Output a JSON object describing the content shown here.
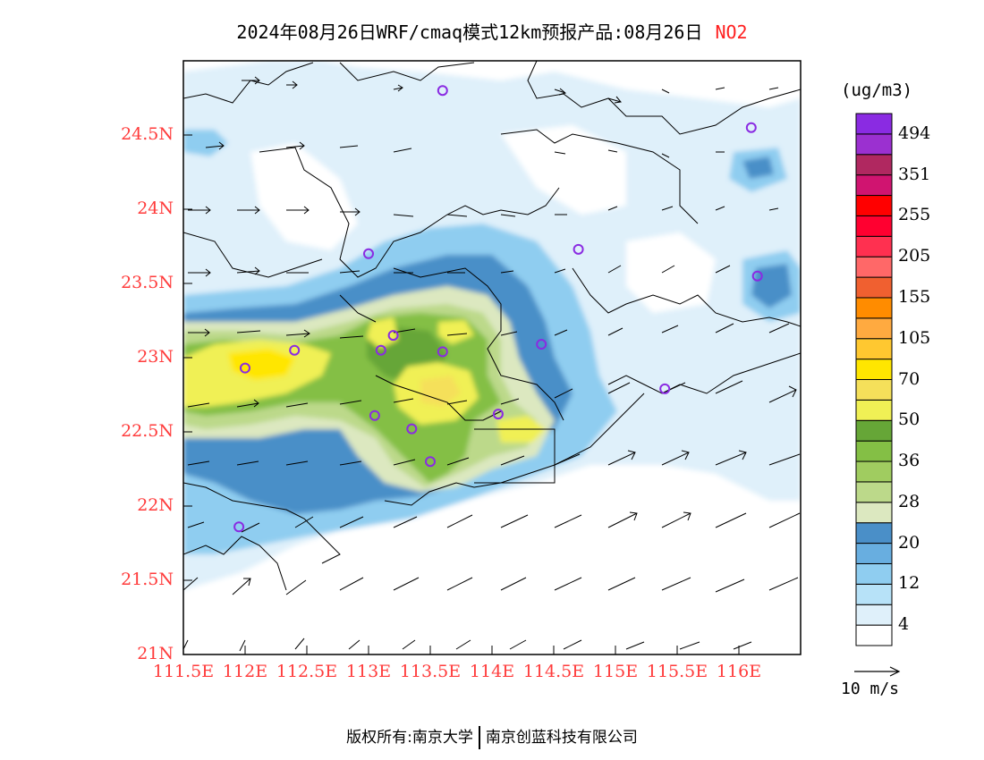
{
  "title": {
    "text": "2024年08月26日WRF/cmaq模式12km预报产品:08月26日",
    "species": "NO2"
  },
  "colors": {
    "axis_label": "#ff3b3b",
    "species": "#ff2020",
    "boundary": "#000000",
    "station_marker": "#8a2be2"
  },
  "map": {
    "lon_range": [
      111.5,
      116.5
    ],
    "lat_range": [
      21.0,
      25.0
    ],
    "lat_ticks": [
      {
        "value": 24.5,
        "label": "24.5N"
      },
      {
        "value": 24.0,
        "label": "24N"
      },
      {
        "value": 23.5,
        "label": "23.5N"
      },
      {
        "value": 23.0,
        "label": "23N"
      },
      {
        "value": 22.5,
        "label": "22.5N"
      },
      {
        "value": 22.0,
        "label": "22N"
      },
      {
        "value": 21.5,
        "label": "21.5N"
      },
      {
        "value": 21.0,
        "label": "21N"
      }
    ],
    "lon_ticks": [
      {
        "value": 111.5,
        "label": "111.5E"
      },
      {
        "value": 112.0,
        "label": "112E"
      },
      {
        "value": 112.5,
        "label": "112.5E"
      },
      {
        "value": 113.0,
        "label": "113E"
      },
      {
        "value": 113.5,
        "label": "113.5E"
      },
      {
        "value": 114.0,
        "label": "114E"
      },
      {
        "value": 114.5,
        "label": "114.5E"
      },
      {
        "value": 115.0,
        "label": "115E"
      },
      {
        "value": 115.5,
        "label": "115.5E"
      },
      {
        "value": 116.0,
        "label": "116E"
      }
    ],
    "stations": [
      {
        "lon": 113.6,
        "lat": 24.8
      },
      {
        "lon": 116.1,
        "lat": 24.55
      },
      {
        "lon": 113.0,
        "lat": 23.7
      },
      {
        "lon": 114.7,
        "lat": 23.73
      },
      {
        "lon": 116.15,
        "lat": 23.55
      },
      {
        "lon": 113.2,
        "lat": 23.15
      },
      {
        "lon": 113.1,
        "lat": 23.05
      },
      {
        "lon": 112.4,
        "lat": 23.05
      },
      {
        "lon": 113.6,
        "lat": 23.04
      },
      {
        "lon": 114.4,
        "lat": 23.09
      },
      {
        "lon": 112.0,
        "lat": 22.93
      },
      {
        "lon": 115.4,
        "lat": 22.79
      },
      {
        "lon": 113.05,
        "lat": 22.61
      },
      {
        "lon": 114.05,
        "lat": 22.62
      },
      {
        "lon": 113.35,
        "lat": 22.52
      },
      {
        "lon": 113.5,
        "lat": 22.3
      },
      {
        "lon": 111.95,
        "lat": 21.86
      }
    ]
  },
  "colorbar": {
    "unit": "(ug/m3)",
    "colors": [
      "#ffffff",
      "#dff0fa",
      "#b7e2f8",
      "#8fcdf0",
      "#68aee0",
      "#4a8fc8",
      "#dce8c0",
      "#bcd98a",
      "#a0cc60",
      "#84bf45",
      "#66a637",
      "#f0f055",
      "#f5e05a",
      "#ffe600",
      "#ffc830",
      "#ffaa40",
      "#ff8c00",
      "#f06030",
      "#ff6868",
      "#ff3050",
      "#ff0030",
      "#ff0000",
      "#d01470",
      "#b02860",
      "#9b30d0",
      "#8a2be2"
    ],
    "labels": [
      "494",
      "351",
      "255",
      "205",
      "155",
      "105",
      "70",
      "50",
      "36",
      "28",
      "20",
      "12",
      "4"
    ]
  },
  "reference_vector": {
    "label": "10 m/s"
  },
  "footer": {
    "left": "版权所有:南京大学",
    "right": "南京创蓝科技有限公司"
  }
}
